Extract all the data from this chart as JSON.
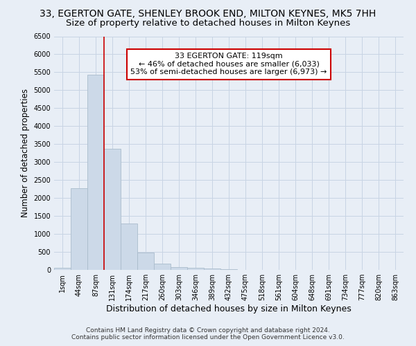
{
  "title": "33, EGERTON GATE, SHENLEY BROOK END, MILTON KEYNES, MK5 7HH",
  "subtitle": "Size of property relative to detached houses in Milton Keynes",
  "xlabel": "Distribution of detached houses by size in Milton Keynes",
  "ylabel": "Number of detached properties",
  "footer_line1": "Contains HM Land Registry data © Crown copyright and database right 2024.",
  "footer_line2": "Contains public sector information licensed under the Open Government Licence v3.0.",
  "bar_labels": [
    "1sqm",
    "44sqm",
    "87sqm",
    "131sqm",
    "174sqm",
    "217sqm",
    "260sqm",
    "303sqm",
    "346sqm",
    "389sqm",
    "432sqm",
    "475sqm",
    "518sqm",
    "561sqm",
    "604sqm",
    "648sqm",
    "691sqm",
    "734sqm",
    "777sqm",
    "820sqm",
    "863sqm"
  ],
  "bar_values": [
    60,
    2280,
    5430,
    3380,
    1300,
    480,
    170,
    85,
    55,
    35,
    15,
    5,
    2,
    1,
    0,
    0,
    0,
    0,
    0,
    0,
    0
  ],
  "bar_color": "#ccd9e8",
  "bar_edgecolor": "#aabccc",
  "vline_pos": 2.5,
  "vline_color": "#cc0000",
  "annotation_text": "33 EGERTON GATE: 119sqm\n← 46% of detached houses are smaller (6,033)\n53% of semi-detached houses are larger (6,973) →",
  "annotation_box_color": "white",
  "annotation_box_edgecolor": "#cc0000",
  "ylim": [
    0,
    6500
  ],
  "yticks": [
    0,
    500,
    1000,
    1500,
    2000,
    2500,
    3000,
    3500,
    4000,
    4500,
    5000,
    5500,
    6000,
    6500
  ],
  "grid_color": "#c8d4e4",
  "bg_color": "#e8eef6",
  "title_fontsize": 10,
  "subtitle_fontsize": 9.5,
  "xlabel_fontsize": 9,
  "ylabel_fontsize": 8.5,
  "tick_fontsize": 7,
  "annotation_fontsize": 8,
  "footer_fontsize": 6.5
}
